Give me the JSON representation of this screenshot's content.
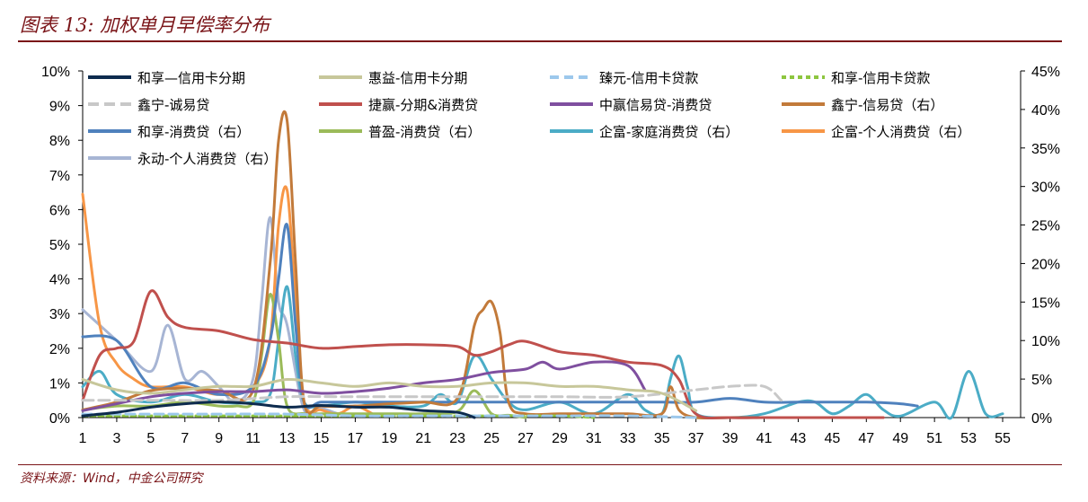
{
  "header": {
    "title": "图表 13: 加权单月早偿率分布"
  },
  "footer": {
    "source": "资料来源：Wind，中金公司研究"
  },
  "chart_data": {
    "type": "line",
    "x": [
      1,
      3,
      5,
      7,
      9,
      11,
      13,
      15,
      17,
      19,
      21,
      23,
      25,
      27,
      29,
      31,
      33,
      35,
      37,
      39,
      41,
      43,
      45,
      47,
      49,
      51,
      53,
      55
    ],
    "x_ticks": [
      1,
      3,
      5,
      7,
      9,
      11,
      13,
      15,
      17,
      19,
      21,
      23,
      25,
      27,
      29,
      31,
      33,
      35,
      37,
      39,
      41,
      43,
      45,
      47,
      49,
      51,
      53,
      55
    ],
    "x_range": [
      1,
      55
    ],
    "y_left": {
      "ticks": [
        "0%",
        "1%",
        "2%",
        "3%",
        "4%",
        "5%",
        "6%",
        "7%",
        "8%",
        "9%",
        "10%"
      ],
      "range": [
        0,
        10
      ]
    },
    "y_right": {
      "ticks": [
        "0%",
        "5%",
        "10%",
        "15%",
        "20%",
        "25%",
        "30%",
        "35%",
        "40%",
        "45%"
      ],
      "range": [
        0,
        45
      ]
    },
    "legend_position": "top",
    "series": [
      {
        "name": "和享—信用卡分期",
        "color": "#0d2b4e",
        "dash": "",
        "axis": "left",
        "x": [
          1,
          3,
          5,
          7,
          9,
          11,
          13,
          15,
          17,
          19,
          21,
          23,
          24
        ],
        "y": [
          0.05,
          0.15,
          0.3,
          0.4,
          0.45,
          0.4,
          0.3,
          0.35,
          0.3,
          0.3,
          0.2,
          0.15,
          0.0
        ]
      },
      {
        "name": "惠益-信用卡分期",
        "color": "#c7c79a",
        "dash": "",
        "axis": "left",
        "x": [
          1,
          3,
          5,
          7,
          9,
          11,
          13,
          15,
          17,
          19,
          21,
          23,
          25,
          27,
          29,
          31,
          33,
          35,
          37
        ],
        "y": [
          1.1,
          0.8,
          0.7,
          0.8,
          0.9,
          0.9,
          1.1,
          1.0,
          0.9,
          1.0,
          0.9,
          0.9,
          1.0,
          1.0,
          0.9,
          0.9,
          0.8,
          0.7,
          0.2
        ]
      },
      {
        "name": "臻元-信用卡贷款",
        "color": "#9cc8ec",
        "dash": "10,6",
        "axis": "left",
        "x": [
          1,
          5,
          9,
          13,
          17,
          21,
          25,
          29,
          33,
          37
        ],
        "y": [
          0.1,
          0.1,
          0.1,
          0.1,
          0.05,
          0.05,
          0.05,
          0.05,
          0.05,
          0.0
        ]
      },
      {
        "name": "和享-信用卡贷款",
        "color": "#8dc63f",
        "dash": "5,4",
        "axis": "left",
        "x": [
          1,
          5,
          9,
          13,
          17,
          21,
          25,
          29,
          31
        ],
        "y": [
          0.05,
          0.05,
          0.05,
          0.05,
          0.05,
          0.05,
          0.05,
          0.05,
          0.0
        ]
      },
      {
        "name": "鑫宁-诚易贷",
        "color": "#c8c8c8",
        "dash": "12,6",
        "axis": "left",
        "x": [
          1,
          5,
          9,
          13,
          17,
          21,
          25,
          29,
          33,
          37,
          39,
          41,
          42
        ],
        "y": [
          0.5,
          0.5,
          0.5,
          0.6,
          0.6,
          0.6,
          0.6,
          0.6,
          0.6,
          0.8,
          0.9,
          0.9,
          0.5
        ]
      },
      {
        "name": "捷赢-分期&消费贷",
        "color": "#c0504d",
        "dash": "",
        "axis": "left",
        "x": [
          1,
          2,
          3,
          4,
          5,
          6,
          7,
          9,
          11,
          13,
          15,
          17,
          19,
          21,
          23,
          24,
          25,
          26,
          27,
          29,
          31,
          33,
          35,
          36,
          37,
          39,
          41,
          43,
          45,
          47,
          48
        ],
        "y": [
          0.5,
          1.8,
          2.0,
          2.2,
          3.65,
          2.9,
          2.6,
          2.5,
          2.25,
          2.15,
          2.0,
          2.05,
          2.1,
          2.1,
          2.05,
          1.8,
          1.9,
          2.1,
          2.2,
          1.9,
          1.8,
          1.6,
          1.5,
          1.1,
          0.1,
          0.0,
          0.0,
          0.0,
          0.0,
          0.0,
          0.0
        ]
      },
      {
        "name": "中赢信易贷-消费贷",
        "color": "#7f4f9f",
        "dash": "",
        "axis": "left",
        "x": [
          1,
          3,
          5,
          7,
          9,
          11,
          13,
          15,
          17,
          19,
          21,
          23,
          25,
          27,
          28,
          29,
          31,
          33,
          34
        ],
        "y": [
          0.2,
          0.4,
          0.6,
          0.7,
          0.75,
          0.75,
          0.8,
          0.7,
          0.75,
          0.85,
          1.0,
          1.1,
          1.3,
          1.4,
          1.6,
          1.4,
          1.6,
          1.5,
          0.8
        ]
      },
      {
        "name": "鑫宁-信易贷（右）",
        "color": "#c27a3a",
        "dash": "",
        "axis": "right",
        "x": [
          1,
          3,
          5,
          7,
          9,
          11,
          12,
          12.5,
          13,
          13.5,
          14,
          15,
          17,
          19,
          21,
          23,
          24,
          24.5,
          25,
          25.5,
          26,
          27,
          29,
          31,
          33,
          35,
          35.5,
          36,
          37,
          39,
          41,
          43
        ],
        "y": [
          1.0,
          2.0,
          3.5,
          3.8,
          3.5,
          3.5,
          20,
          36,
          38.5,
          20,
          2,
          1.5,
          1.5,
          1.8,
          2.0,
          2.5,
          12,
          14,
          15,
          11,
          2,
          0.5,
          0.5,
          0.5,
          0.5,
          0.5,
          4,
          1,
          0,
          0,
          0,
          0
        ]
      },
      {
        "name": "和享-消费贷（右）",
        "color": "#4f81bd",
        "dash": "",
        "axis": "right",
        "x": [
          1,
          3,
          5,
          7,
          9,
          11,
          12,
          12.5,
          13,
          13.5,
          14,
          15,
          17,
          19,
          21,
          23,
          25,
          27,
          29,
          31,
          33,
          35,
          37,
          39,
          41,
          43,
          45,
          47,
          49,
          50
        ],
        "y": [
          10.5,
          10,
          4,
          4.5,
          3,
          4,
          10,
          18,
          25,
          12,
          2,
          2,
          2,
          2,
          2,
          2,
          2,
          2,
          2,
          2,
          2,
          2,
          2,
          2.5,
          2,
          2,
          2,
          2,
          1.8,
          1.5
        ]
      },
      {
        "name": "普盈-消费贷（右）",
        "color": "#9bbb59",
        "dash": "",
        "axis": "right",
        "x": [
          1,
          3,
          5,
          7,
          9,
          10,
          11,
          11.5,
          12,
          12.5,
          13,
          14,
          15,
          17,
          19,
          21,
          23,
          24,
          25,
          26,
          27
        ],
        "y": [
          1.0,
          1.5,
          1.5,
          2.0,
          1.5,
          1.5,
          2.0,
          8,
          16,
          10,
          1.5,
          0.5,
          0.5,
          0.5,
          0.5,
          0.5,
          0.8,
          3.5,
          0.5,
          0.3,
          0
        ]
      },
      {
        "name": "企富-家庭消费贷（右）",
        "color": "#4bacc6",
        "dash": "",
        "axis": "right",
        "x": [
          1,
          2,
          3,
          5,
          7,
          9,
          11,
          12,
          12.5,
          13,
          13.5,
          14,
          15,
          17,
          19,
          21,
          22,
          23,
          24,
          25,
          26,
          27,
          29,
          31,
          33,
          34,
          35,
          35.5,
          36,
          36.5,
          37,
          39,
          41,
          43,
          44,
          45,
          46,
          47,
          48,
          49,
          51,
          52,
          53,
          54,
          55
        ],
        "y": [
          4,
          6,
          3,
          2,
          3,
          2,
          2,
          3,
          10,
          17,
          8,
          2,
          1.5,
          2,
          1.5,
          1.5,
          3,
          2,
          8,
          5,
          2,
          1,
          2,
          0.5,
          3,
          1,
          0.5,
          5,
          8,
          4,
          0.5,
          0,
          0.5,
          2,
          2,
          0.5,
          1.5,
          3,
          1,
          0.2,
          2,
          0,
          6,
          0.5,
          0.5
        ]
      },
      {
        "name": "企富-个人消费贷（右）",
        "color": "#f79646",
        "dash": "",
        "axis": "right",
        "x": [
          1,
          2,
          3,
          4,
          5,
          7,
          9,
          11,
          12,
          12.5,
          13,
          13.5,
          14,
          15,
          16,
          17,
          18
        ],
        "y": [
          29,
          12,
          7,
          5,
          4,
          4,
          3,
          4,
          10,
          25,
          29.5,
          15,
          2,
          1,
          0.5,
          1.5,
          0.5
        ]
      },
      {
        "name": "永动-个人消费贷（右）",
        "color": "#a7b5d4",
        "dash": "",
        "axis": "right",
        "x": [
          1,
          3,
          5,
          6,
          7,
          8,
          9,
          10,
          11,
          11.5,
          12,
          12.5,
          13,
          14,
          15,
          16,
          17
        ],
        "y": [
          14,
          10,
          6,
          12,
          5,
          6,
          4,
          2,
          5,
          15,
          26,
          15,
          12,
          1,
          1.2,
          0.5,
          0.2
        ]
      }
    ]
  }
}
